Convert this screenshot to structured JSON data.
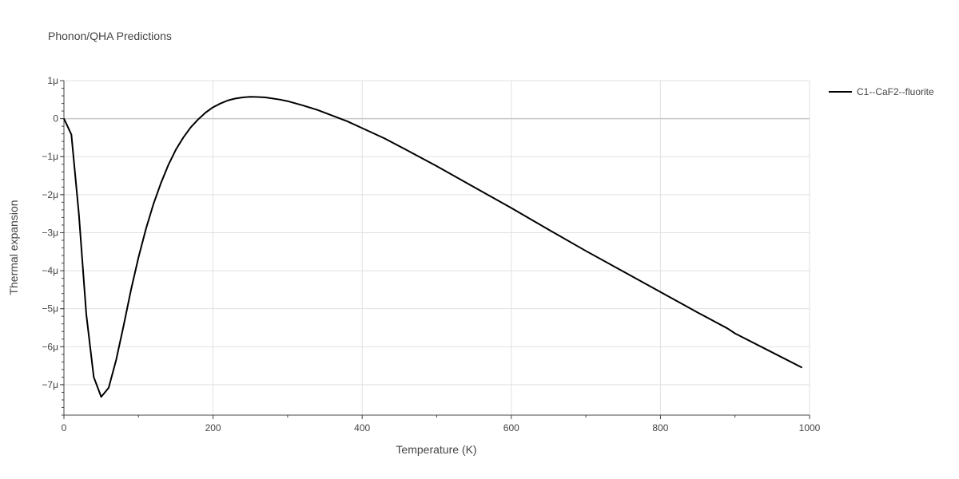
{
  "chart_data": {
    "type": "line",
    "title": "Phonon/QHA Predictions",
    "xlabel": "Temperature (K)",
    "ylabel": "Thermal expansion",
    "xlim": [
      0,
      1000
    ],
    "ylim": [
      -7.8e-06,
      1e-06
    ],
    "x_ticks": [
      0,
      200,
      400,
      600,
      800,
      1000
    ],
    "x_tick_labels": [
      "0",
      "200",
      "400",
      "600",
      "800",
      "1000"
    ],
    "y_ticks": [
      1e-06,
      0,
      -1e-06,
      -2e-06,
      -3e-06,
      -4e-06,
      -5e-06,
      -6e-06,
      -7e-06
    ],
    "y_tick_labels": [
      "1μ",
      "0",
      "−1μ",
      "−2μ",
      "−3μ",
      "−4μ",
      "−5μ",
      "−6μ",
      "−7μ"
    ],
    "grid": true,
    "legend_position": "top-right",
    "series": [
      {
        "name": "C1--CaF2--fluorite",
        "color": "#000000",
        "x": [
          0,
          10,
          20,
          30,
          40,
          50,
          60,
          70,
          80,
          90,
          100,
          110,
          120,
          130,
          140,
          150,
          160,
          170,
          180,
          190,
          200,
          210,
          220,
          230,
          240,
          250,
          260,
          270,
          280,
          290,
          300,
          320,
          340,
          360,
          380,
          400,
          430,
          460,
          500,
          550,
          600,
          650,
          700,
          750,
          800,
          850,
          890,
          900,
          950,
          990
        ],
        "y": [
          0,
          -4.2e-07,
          -2.5e-06,
          -5.15e-06,
          -6.8e-06,
          -7.32e-06,
          -7.08e-06,
          -6.35e-06,
          -5.45e-06,
          -4.5e-06,
          -3.65e-06,
          -2.9e-06,
          -2.25e-06,
          -1.7e-06,
          -1.22e-06,
          -8.2e-07,
          -5e-07,
          -2.3e-07,
          -2e-08,
          1.6e-07,
          3e-07,
          4e-07,
          4.8e-07,
          5.3e-07,
          5.6e-07,
          5.75e-07,
          5.7e-07,
          5.6e-07,
          5.3e-07,
          5e-07,
          4.6e-07,
          3.5e-07,
          2.3e-07,
          8e-08,
          -7e-08,
          -2.5e-07,
          -5.2e-07,
          -8.3e-07,
          -1.25e-06,
          -1.8e-06,
          -2.35e-06,
          -2.92e-06,
          -3.48e-06,
          -4.02e-06,
          -4.56e-06,
          -5.1e-06,
          -5.52e-06,
          -5.65e-06,
          -6.15e-06,
          -6.55e-06
        ]
      }
    ]
  }
}
